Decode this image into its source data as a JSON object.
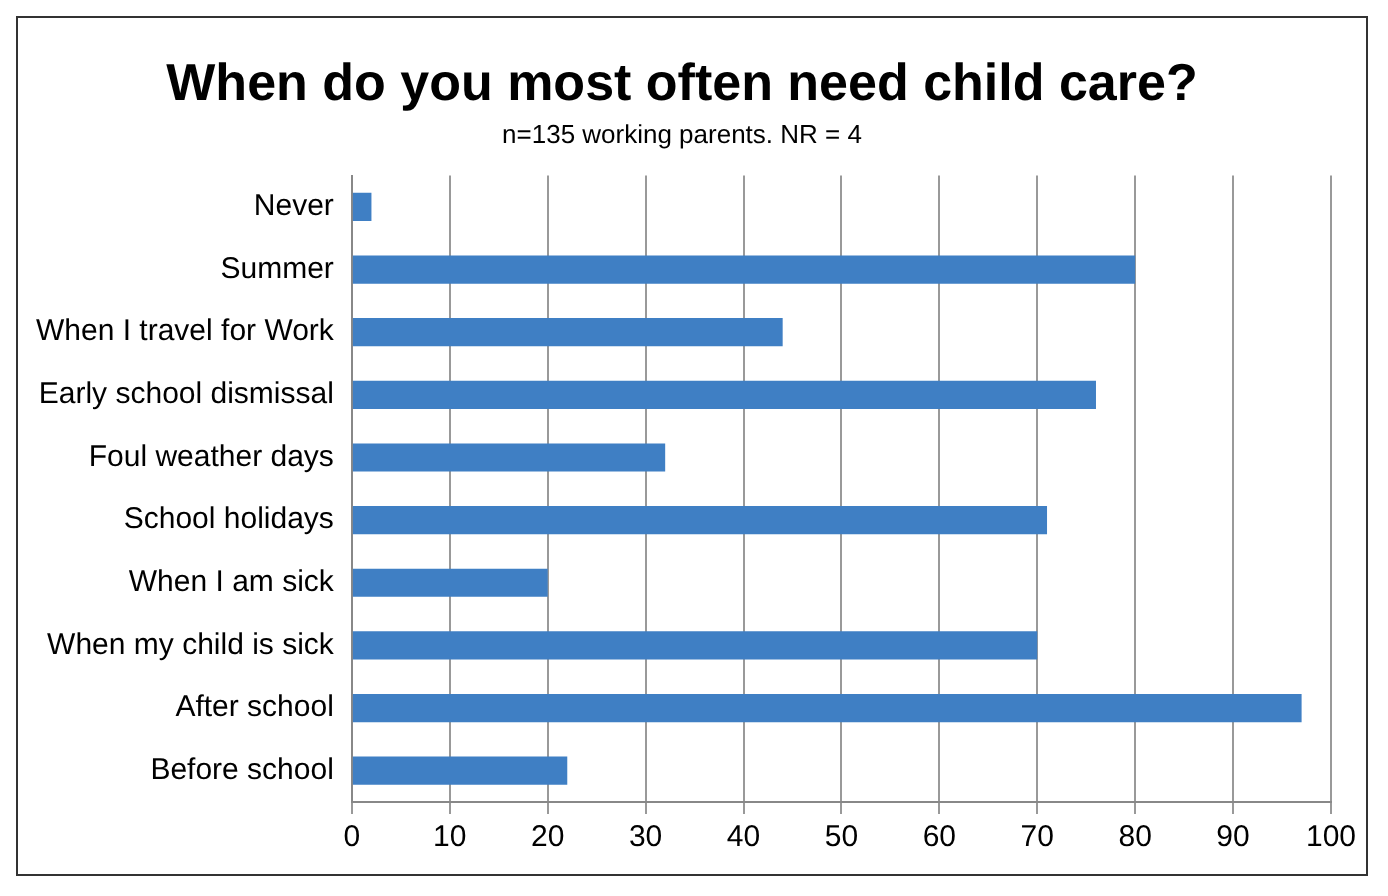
{
  "chart_data": {
    "type": "bar",
    "orientation": "horizontal",
    "title": "When do you most often need child care?",
    "subtitle": "n=135 working parents. NR = 4",
    "categories": [
      "Never",
      "Summer",
      "When I travel for Work",
      "Early school dismissal",
      "Foul weather days",
      "School holidays",
      "When I am sick",
      "When my child is sick",
      "After school",
      "Before school"
    ],
    "values": [
      2,
      80,
      44,
      76,
      32,
      71,
      20,
      70,
      97,
      22
    ],
    "color": "#3f7fc4",
    "xlim": [
      0,
      100
    ],
    "xticks": [
      0,
      10,
      20,
      30,
      40,
      50,
      60,
      70,
      80,
      90,
      100
    ],
    "grid": "x",
    "legend": false
  }
}
